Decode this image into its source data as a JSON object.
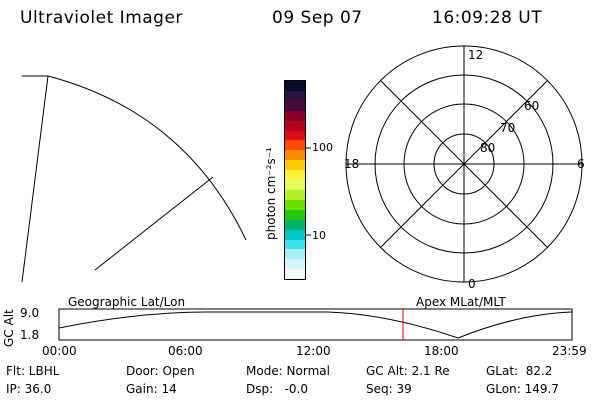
{
  "header": {
    "title": "Ultraviolet Imager",
    "date": "09 Sep 07",
    "time": "16:09:28 UT"
  },
  "colorbar": {
    "label": "photon cm⁻²s⁻¹",
    "ticks": [
      "100",
      "10"
    ],
    "colors": [
      "#0a0a2a",
      "#28143e",
      "#4a0a3a",
      "#8a0028",
      "#b4001a",
      "#dc0c1a",
      "#ff4a00",
      "#ff8c00",
      "#ffc800",
      "#fff33a",
      "#e6ff60",
      "#b4f028",
      "#6ee000",
      "#22c800",
      "#00b46e",
      "#00c8c8",
      "#3ce0ea",
      "#a8f0f4",
      "#d8f4f6",
      "#f0f8f8"
    ]
  },
  "polar": {
    "mlt_labels": {
      "top": "12",
      "bottom": "0",
      "left": "18",
      "right": "6"
    },
    "lat_labels": [
      "60",
      "70",
      "80"
    ]
  },
  "timeline": {
    "ylabel": "GC Alt",
    "left_title": "Geographic Lat/Lon",
    "right_title": "Apex MLat/MLT",
    "y_ticks": [
      "9.0",
      "1.8"
    ],
    "x_ticks": [
      "00:00",
      "06:00",
      "12:00",
      "18:00",
      "23:59"
    ],
    "marker_color": "#cc0000"
  },
  "status": {
    "flt": "Flt: LBHL",
    "ip": "IP: 36.0",
    "door": "Door: Open",
    "gain": "Gain: 14",
    "mode": "Mode: Normal",
    "dsp": "Dsp:   -0.0",
    "gcalt": "GC Alt: 2.1 Re",
    "seq": "Seq: 39",
    "glat": "GLat:  82.2",
    "glon": "GLon: 149.7"
  }
}
